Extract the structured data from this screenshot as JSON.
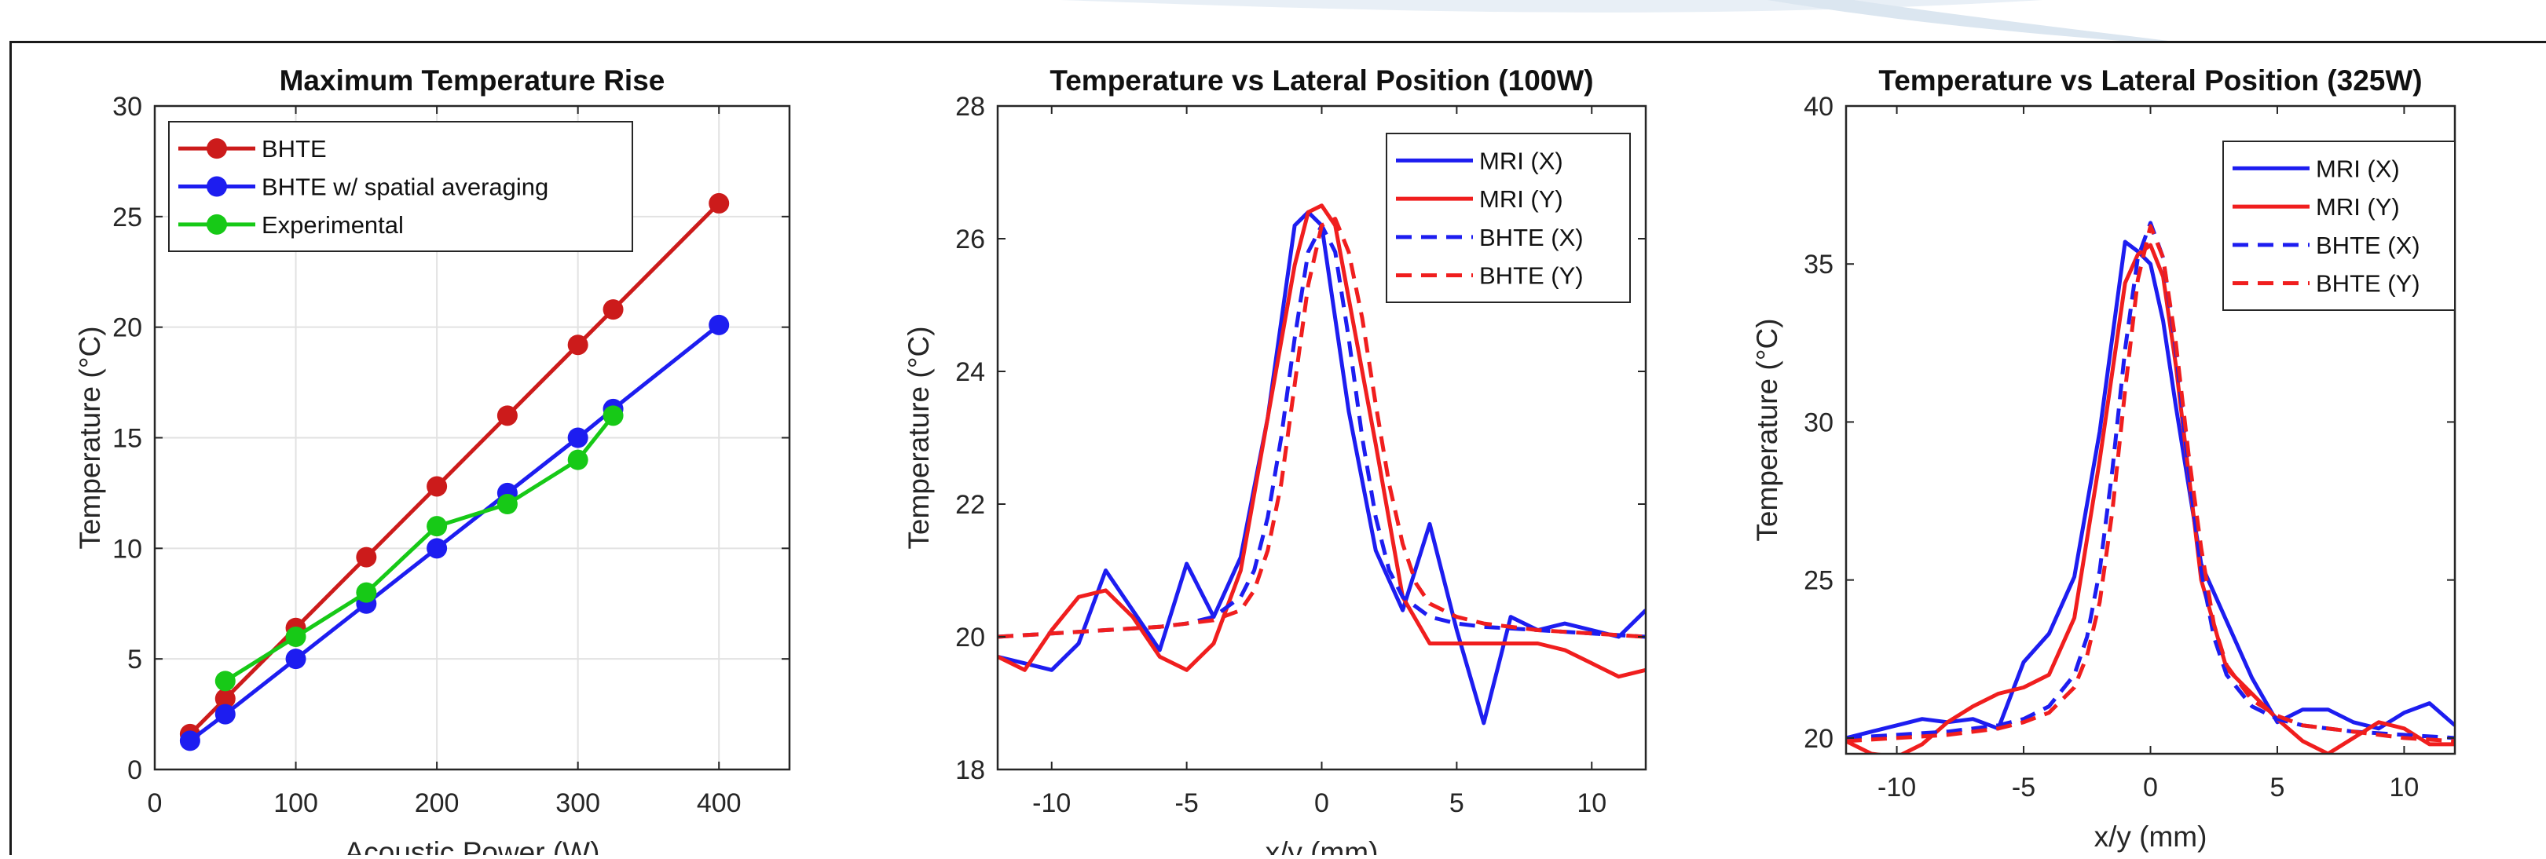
{
  "chart_data": [
    {
      "type": "line",
      "title": "Maximum Temperature Rise",
      "xlabel": "Acoustic Power (W)",
      "ylabel": "Temperature (°C)",
      "xlim": [
        0,
        450
      ],
      "ylim": [
        0,
        30
      ],
      "xticks": [
        0,
        100,
        200,
        300,
        400
      ],
      "yticks": [
        0,
        5,
        10,
        15,
        20,
        25,
        30
      ],
      "grid": true,
      "legend_position": "top-left",
      "series": [
        {
          "name": "BHTE",
          "color": "#cc1b1b",
          "style": "solid",
          "marker": "circle",
          "x": [
            25,
            50,
            100,
            150,
            200,
            250,
            300,
            325,
            400
          ],
          "y": [
            1.6,
            3.2,
            6.4,
            9.6,
            12.8,
            16.0,
            19.2,
            20.8,
            25.6
          ]
        },
        {
          "name": "BHTE w/ spatial averaging",
          "color": "#1d1df0",
          "style": "solid",
          "marker": "circle",
          "x": [
            25,
            50,
            100,
            150,
            200,
            250,
            300,
            325,
            400
          ],
          "y": [
            1.3,
            2.5,
            5.0,
            7.5,
            10.0,
            12.5,
            15.0,
            16.3,
            20.1
          ]
        },
        {
          "name": "Experimental",
          "color": "#17c917",
          "style": "solid",
          "marker": "circle",
          "x": [
            50,
            100,
            150,
            200,
            250,
            300,
            325
          ],
          "y": [
            4.0,
            6.0,
            8.0,
            11.0,
            12.0,
            14.0,
            16.0
          ]
        }
      ]
    },
    {
      "type": "line",
      "title": "Temperature vs Lateral Position (100W)",
      "xlabel": "x/y (mm)",
      "ylabel": "Temperature (°C)",
      "xlim": [
        -12,
        12
      ],
      "ylim": [
        18,
        28
      ],
      "xticks": [
        -10,
        -5,
        0,
        5,
        10
      ],
      "yticks": [
        18,
        20,
        22,
        24,
        26,
        28
      ],
      "grid": false,
      "legend_position": "top-right",
      "series": [
        {
          "name": "MRI (X)",
          "color": "#1d1df0",
          "style": "solid",
          "x": [
            -12,
            -11,
            -10,
            -9,
            -8,
            -7,
            -6,
            -5,
            -4,
            -3,
            -2,
            -1,
            -0.5,
            0,
            0.5,
            1,
            2,
            3,
            4,
            5,
            6,
            7,
            8,
            9,
            10,
            11,
            12
          ],
          "y": [
            19.7,
            19.6,
            19.5,
            19.9,
            21.0,
            20.4,
            19.8,
            21.1,
            20.3,
            21.2,
            23.3,
            26.2,
            26.4,
            26.2,
            24.8,
            23.4,
            21.3,
            20.4,
            21.7,
            20.1,
            18.7,
            20.3,
            20.1,
            20.2,
            20.1,
            20.0,
            20.4
          ]
        },
        {
          "name": "MRI (Y)",
          "color": "#f01e1e",
          "style": "solid",
          "x": [
            -12,
            -11,
            -10,
            -9,
            -8,
            -7,
            -6,
            -5,
            -4,
            -3,
            -2,
            -1,
            -0.5,
            0,
            0.5,
            1,
            2,
            3,
            4,
            5,
            6,
            7,
            8,
            9,
            10,
            11,
            12
          ],
          "y": [
            19.7,
            19.5,
            20.1,
            20.6,
            20.7,
            20.3,
            19.7,
            19.5,
            19.9,
            21.0,
            23.3,
            25.6,
            26.4,
            26.5,
            26.2,
            25.1,
            22.9,
            20.6,
            19.9,
            19.9,
            19.9,
            19.9,
            19.9,
            19.8,
            19.6,
            19.4,
            19.5
          ]
        },
        {
          "name": "BHTE (X)",
          "color": "#1d1df0",
          "style": "dashed",
          "x": [
            -12,
            -10,
            -8,
            -6,
            -5,
            -4,
            -3,
            -2.5,
            -2,
            -1.5,
            -1,
            -0.5,
            0,
            0.5,
            1,
            1.5,
            2,
            2.5,
            3,
            4,
            5,
            6,
            8,
            10,
            12
          ],
          "y": [
            20.0,
            20.05,
            20.1,
            20.15,
            20.2,
            20.3,
            20.6,
            21.0,
            21.8,
            23.0,
            24.5,
            25.8,
            26.2,
            25.8,
            24.5,
            23.0,
            21.8,
            21.0,
            20.6,
            20.3,
            20.2,
            20.15,
            20.1,
            20.05,
            20.0
          ]
        },
        {
          "name": "BHTE (Y)",
          "color": "#f01e1e",
          "style": "dashed",
          "x": [
            -12,
            -10,
            -8,
            -6,
            -5,
            -4,
            -3,
            -2.5,
            -2,
            -1.5,
            -1,
            -0.5,
            0,
            0.5,
            1,
            1.5,
            2,
            2.5,
            3,
            3.5,
            4,
            5,
            6,
            8,
            10,
            12
          ],
          "y": [
            20.0,
            20.05,
            20.1,
            20.15,
            20.2,
            20.25,
            20.4,
            20.7,
            21.3,
            22.3,
            23.8,
            25.3,
            26.2,
            26.3,
            25.8,
            24.8,
            23.5,
            22.3,
            21.4,
            20.8,
            20.5,
            20.3,
            20.2,
            20.1,
            20.05,
            20.0
          ]
        }
      ]
    },
    {
      "type": "line",
      "title": "Temperature vs Lateral Position (325W)",
      "xlabel": "x/y (mm)",
      "ylabel": "Temperature (°C)",
      "xlim": [
        -12,
        12
      ],
      "ylim": [
        19.5,
        40
      ],
      "xticks": [
        -10,
        -5,
        0,
        5,
        10
      ],
      "yticks": [
        20,
        25,
        30,
        35,
        40
      ],
      "grid": false,
      "legend_position": "top-right",
      "series": [
        {
          "name": "MRI (X)",
          "color": "#1d1df0",
          "style": "solid",
          "x": [
            -12,
            -11,
            -10,
            -9,
            -8,
            -7,
            -6,
            -5,
            -4,
            -3,
            -2,
            -1,
            -0.5,
            0,
            0.5,
            1,
            2,
            3,
            4,
            5,
            6,
            7,
            8,
            9,
            10,
            11,
            12
          ],
          "y": [
            20.0,
            20.2,
            20.4,
            20.6,
            20.5,
            20.6,
            20.3,
            22.4,
            23.3,
            25.1,
            29.7,
            35.7,
            35.4,
            35.0,
            33.2,
            30.5,
            25.5,
            23.7,
            21.9,
            20.5,
            20.9,
            20.9,
            20.5,
            20.3,
            20.8,
            21.1,
            20.4
          ]
        },
        {
          "name": "MRI (Y)",
          "color": "#f01e1e",
          "style": "solid",
          "x": [
            -12,
            -11,
            -10,
            -9,
            -8,
            -7,
            -6,
            -5,
            -4,
            -3,
            -2,
            -1,
            -0.5,
            0,
            0.5,
            1,
            2,
            3,
            4,
            5,
            6,
            7,
            8,
            9,
            10,
            11,
            12
          ],
          "y": [
            19.9,
            19.5,
            19.4,
            19.8,
            20.5,
            21.0,
            21.4,
            21.6,
            22.0,
            23.8,
            28.8,
            34.4,
            35.3,
            35.6,
            34.6,
            31.8,
            25.0,
            22.2,
            21.4,
            20.6,
            19.9,
            19.5,
            20.0,
            20.5,
            20.3,
            19.8,
            19.8
          ]
        },
        {
          "name": "BHTE (X)",
          "color": "#1d1df0",
          "style": "dashed",
          "x": [
            -12,
            -10,
            -8,
            -6,
            -5,
            -4,
            -3,
            -2.5,
            -2,
            -1.5,
            -1,
            -0.5,
            0,
            0.5,
            1,
            1.5,
            2,
            2.5,
            3,
            4,
            5,
            6,
            8,
            10,
            12
          ],
          "y": [
            20.0,
            20.1,
            20.2,
            20.4,
            20.6,
            21.0,
            22.0,
            23.2,
            25.3,
            28.5,
            32.3,
            35.2,
            36.3,
            35.2,
            32.3,
            28.5,
            25.3,
            23.2,
            22.0,
            21.0,
            20.6,
            20.4,
            20.2,
            20.1,
            20.0
          ]
        },
        {
          "name": "BHTE (Y)",
          "color": "#f01e1e",
          "style": "dashed",
          "x": [
            -12,
            -10,
            -8,
            -6,
            -5,
            -4,
            -3,
            -2.5,
            -2,
            -1.5,
            -1,
            -0.5,
            0,
            0.5,
            1,
            1.5,
            2,
            2.5,
            3,
            4,
            5,
            6,
            8,
            10,
            12
          ],
          "y": [
            19.9,
            20.0,
            20.1,
            20.3,
            20.5,
            20.8,
            21.6,
            22.6,
            24.3,
            27.2,
            31.0,
            34.5,
            36.2,
            35.2,
            32.5,
            29.0,
            26.0,
            23.6,
            22.3,
            21.2,
            20.7,
            20.4,
            20.2,
            20.0,
            19.9
          ]
        }
      ]
    }
  ]
}
